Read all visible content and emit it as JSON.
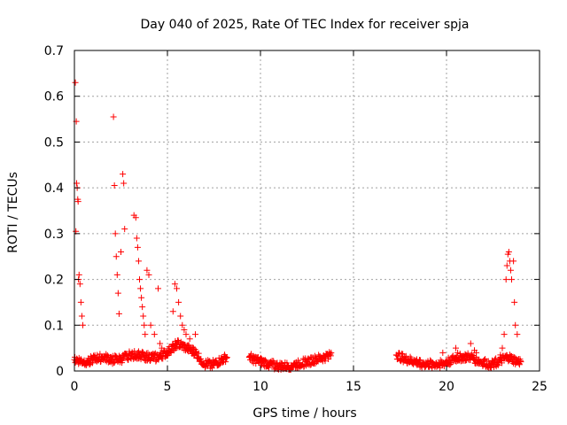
{
  "chart_data": {
    "type": "scatter",
    "title": "Day 040 of 2025, Rate Of TEC Index for receiver spja",
    "xlabel": "GPS time / hours",
    "ylabel": "ROTI / TECUs",
    "xlim": [
      0,
      25
    ],
    "ylim": [
      0,
      0.7
    ],
    "x_ticks": [
      "0",
      "5",
      "10",
      "15",
      "20",
      "25"
    ],
    "y_ticks": [
      "0",
      "0.1",
      "0.2",
      "0.3",
      "0.4",
      "0.5",
      "0.6",
      "0.7"
    ],
    "grid": true,
    "marker": "+",
    "color": "#ff0000",
    "segments": [
      {
        "x": [
          0.0,
          0.5,
          1.0,
          1.5,
          2.0,
          2.5,
          3.0,
          3.5,
          4.0,
          4.5,
          5.0,
          5.5,
          6.0,
          6.5,
          7.0,
          7.5,
          8.0,
          8.2
        ],
        "y": [
          0.025,
          0.02,
          0.025,
          0.03,
          0.025,
          0.025,
          0.035,
          0.035,
          0.03,
          0.03,
          0.04,
          0.06,
          0.05,
          0.04,
          0.015,
          0.015,
          0.025,
          0.03
        ]
      },
      {
        "x": [
          9.4,
          10.0,
          10.5,
          11.0,
          11.5,
          12.0,
          12.5,
          13.0,
          13.5,
          13.8
        ],
        "y": [
          0.03,
          0.02,
          0.015,
          0.01,
          0.01,
          0.015,
          0.02,
          0.025,
          0.03,
          0.04
        ]
      },
      {
        "x": [
          17.3,
          17.8,
          18.3,
          18.8,
          19.3,
          19.8,
          20.3,
          20.8,
          21.3,
          21.8,
          22.3,
          22.8,
          23.3,
          23.8,
          24.0
        ],
        "y": [
          0.035,
          0.025,
          0.02,
          0.015,
          0.015,
          0.015,
          0.025,
          0.03,
          0.03,
          0.02,
          0.015,
          0.02,
          0.03,
          0.02,
          0.02
        ]
      }
    ],
    "spikes": [
      {
        "x": [
          0.05,
          0.1,
          0.12,
          0.15,
          0.18,
          0.2,
          0.08,
          0.22,
          0.25,
          0.3,
          0.35,
          0.4,
          0.45
        ],
        "y": [
          0.63,
          0.545,
          0.41,
          0.4,
          0.375,
          0.37,
          0.305,
          0.2,
          0.21,
          0.19,
          0.15,
          0.12,
          0.1
        ]
      },
      {
        "x": [
          2.1,
          2.15,
          2.2,
          2.25,
          2.3,
          2.35,
          2.4,
          2.5,
          2.6,
          2.65,
          2.7
        ],
        "y": [
          0.555,
          0.405,
          0.3,
          0.25,
          0.21,
          0.17,
          0.125,
          0.26,
          0.43,
          0.41,
          0.31
        ]
      },
      {
        "x": [
          3.2,
          3.3,
          3.35,
          3.4,
          3.45,
          3.5,
          3.55,
          3.6,
          3.65,
          3.7,
          3.75,
          3.8,
          3.9,
          4.0,
          4.1
        ],
        "y": [
          0.34,
          0.335,
          0.29,
          0.27,
          0.24,
          0.2,
          0.18,
          0.16,
          0.14,
          0.12,
          0.1,
          0.08,
          0.22,
          0.21,
          0.1
        ]
      },
      {
        "x": [
          4.3,
          4.5,
          4.6,
          4.7,
          5.3,
          5.4,
          5.5,
          5.6,
          5.7,
          5.8,
          5.9,
          6.0,
          6.2,
          6.4,
          6.5
        ],
        "y": [
          0.08,
          0.18,
          0.06,
          0.05,
          0.13,
          0.19,
          0.18,
          0.15,
          0.12,
          0.1,
          0.09,
          0.08,
          0.07,
          0.05,
          0.08
        ]
      },
      {
        "x": [
          23.0,
          23.1,
          23.2,
          23.25,
          23.3,
          23.35,
          23.4,
          23.45,
          23.5,
          23.6,
          23.65,
          23.7,
          23.8
        ],
        "y": [
          0.05,
          0.08,
          0.2,
          0.23,
          0.255,
          0.26,
          0.24,
          0.22,
          0.2,
          0.24,
          0.15,
          0.1,
          0.08
        ]
      },
      {
        "x": [
          19.8,
          20.5,
          20.6,
          21.3,
          21.5,
          21.6,
          22.9
        ],
        "y": [
          0.04,
          0.05,
          0.04,
          0.06,
          0.045,
          0.04,
          0.035
        ]
      }
    ]
  }
}
